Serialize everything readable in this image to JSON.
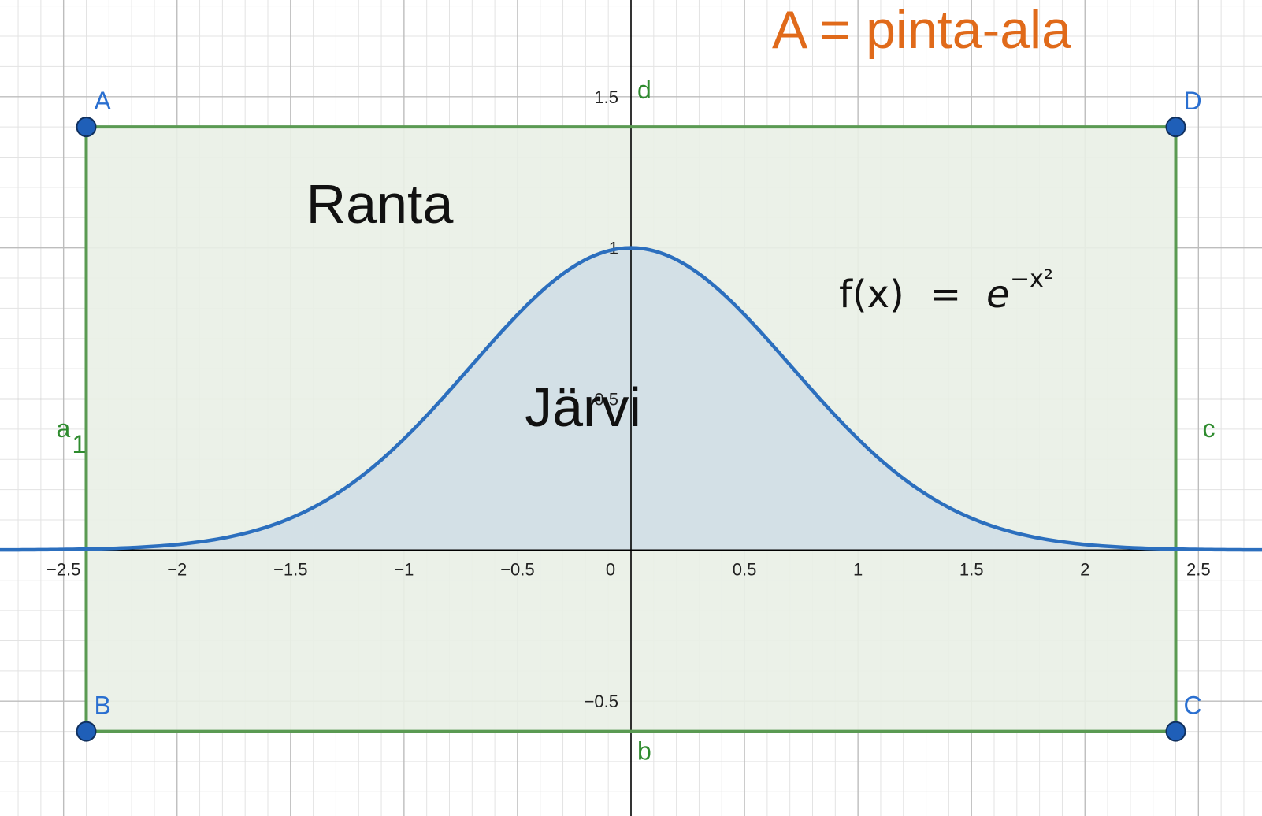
{
  "title": "A = pinta-ala",
  "colors": {
    "title": "#e06a1a",
    "curve": "#2c6fbe",
    "rect": "#5a9a52",
    "rect_fill": "#e9f0e6",
    "lake_fill": "#d3e0e6",
    "point": "#1f5fb8",
    "axis": "#000000",
    "grid_major": "#bdbdbd",
    "grid_minor": "#e3e3e3",
    "segment_label": "#2e8b2e",
    "point_label": "#2a6fd0"
  },
  "region_labels": {
    "shore": "Ranta",
    "lake": "Järvi"
  },
  "formula": {
    "lhs": "f(x)",
    "eq": "=",
    "base": "e",
    "exponent": "−x²"
  },
  "chart_data": {
    "type": "line",
    "title": "A = pinta-ala",
    "xlim": [
      -2.78,
      2.78
    ],
    "ylim": [
      -0.88,
      1.82
    ],
    "grid": true,
    "x_ticks": [
      -2.5,
      -2,
      -1.5,
      -1,
      -0.5,
      0,
      0.5,
      1,
      1.5,
      2,
      2.5
    ],
    "x_tick_labels": [
      "−2.5",
      "−2",
      "−1.5",
      "−1",
      "−0.5",
      "0",
      "0.5",
      "1",
      "1.5",
      "2",
      "2.5"
    ],
    "y_ticks": [
      -0.5,
      0.5,
      1,
      1.5
    ],
    "y_tick_labels": [
      "−0.5",
      "0.5",
      "1",
      "1.5"
    ],
    "series": [
      {
        "name": "f",
        "expression": "e^(-x^2)",
        "x_range": [
          -2.78,
          2.78
        ],
        "color": "#2c6fbe"
      }
    ],
    "shaded_area": {
      "function": "f",
      "x_from": -2.4,
      "x_to": 2.4
    },
    "points": [
      {
        "label": "A",
        "x": -2.4,
        "y": 1.4
      },
      {
        "label": "B",
        "x": -2.4,
        "y": -0.6
      },
      {
        "label": "C",
        "x": 2.4,
        "y": -0.6
      },
      {
        "label": "D",
        "x": 2.4,
        "y": 1.4
      }
    ],
    "segments": [
      {
        "label": "a",
        "subscript": "1",
        "from": "A",
        "to": "B"
      },
      {
        "label": "b",
        "from": "B",
        "to": "C"
      },
      {
        "label": "c",
        "from": "C",
        "to": "D"
      },
      {
        "label": "d",
        "from": "D",
        "to": "A"
      }
    ]
  }
}
